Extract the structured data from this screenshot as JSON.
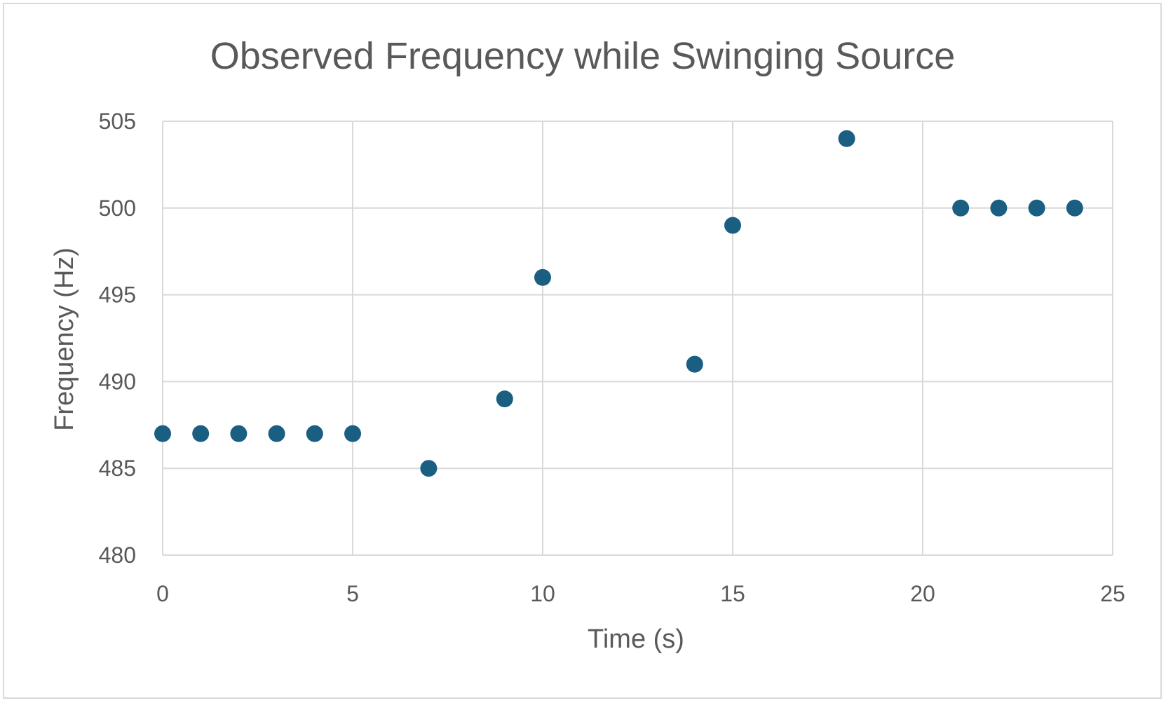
{
  "chart_data": {
    "type": "scatter",
    "title": "Observed Frequency while Swinging Source",
    "xlabel": "Time (s)",
    "ylabel": "Frequency (Hz)",
    "xlim": [
      0,
      25
    ],
    "ylim": [
      480,
      505
    ],
    "xticks": [
      0,
      5,
      10,
      15,
      20,
      25
    ],
    "yticks": [
      480,
      485,
      490,
      495,
      500,
      505
    ],
    "grid": true,
    "legend": "none",
    "marker_color": "#1a5e82",
    "grid_color": "#d9d9d9",
    "series": [
      {
        "x": [
          0,
          1,
          2,
          3,
          4,
          5,
          7,
          9,
          10,
          14,
          15,
          18,
          21,
          22,
          23,
          24
        ],
        "y": [
          487,
          487,
          487,
          487,
          487,
          487,
          485,
          489,
          496,
          491,
          499,
          504,
          500,
          500,
          500,
          500
        ]
      }
    ]
  }
}
